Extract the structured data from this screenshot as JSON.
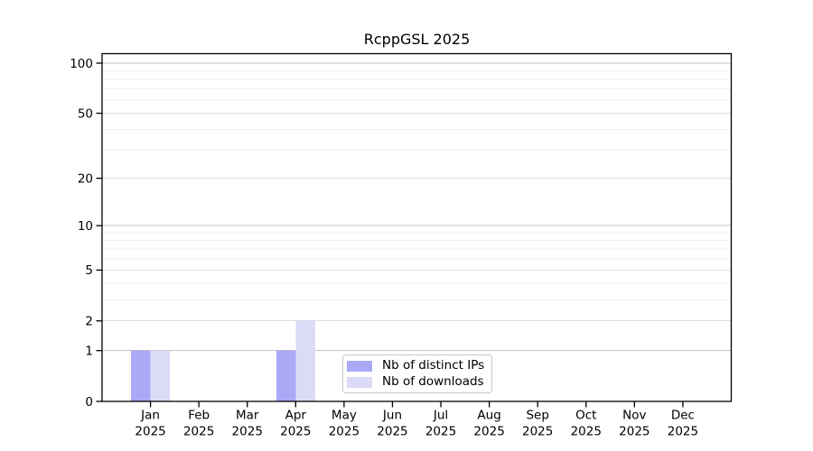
{
  "chart_data": {
    "type": "bar",
    "title": "RcppGSL 2025",
    "categories": [
      "Jan",
      "Feb",
      "Mar",
      "Apr",
      "May",
      "Jun",
      "Jul",
      "Aug",
      "Sep",
      "Oct",
      "Nov",
      "Dec"
    ],
    "year": "2025",
    "series": [
      {
        "name": "Nb of distinct IPs",
        "color": "#a9a9f5",
        "values": [
          1,
          0,
          0,
          1,
          0,
          0,
          0,
          0,
          0,
          0,
          0,
          0
        ]
      },
      {
        "name": "Nb of downloads",
        "color": "#dbdbf8",
        "values": [
          1,
          0,
          0,
          2,
          0,
          0,
          0,
          0,
          0,
          0,
          0,
          0
        ]
      }
    ],
    "y_axis": {
      "scale": "log1p",
      "tick_values": [
        0,
        1,
        2,
        5,
        10,
        20,
        50,
        100
      ],
      "tick_labels": [
        "0",
        "1",
        "2",
        "5",
        "10",
        "20",
        "50",
        "100"
      ],
      "limit_top": 115,
      "grid_major_at": [
        1,
        10,
        100
      ],
      "grid_mid_at": [
        2,
        5,
        20,
        50
      ],
      "grid_minor_at": [
        3,
        4,
        6,
        7,
        8,
        9,
        30,
        40,
        60,
        70,
        80,
        90
      ]
    },
    "legend": {
      "position": "inside-bottom-center",
      "items": [
        {
          "label": "Nb of distinct IPs",
          "color": "#a9a9f5"
        },
        {
          "label": "Nb of downloads",
          "color": "#dbdbf8"
        }
      ]
    },
    "colors": {
      "grid_major": "#c4c4c4",
      "grid_mid": "#dedede",
      "grid_minor": "#efefef",
      "axis": "#000000",
      "text": "#000000",
      "background": "#ffffff"
    }
  }
}
